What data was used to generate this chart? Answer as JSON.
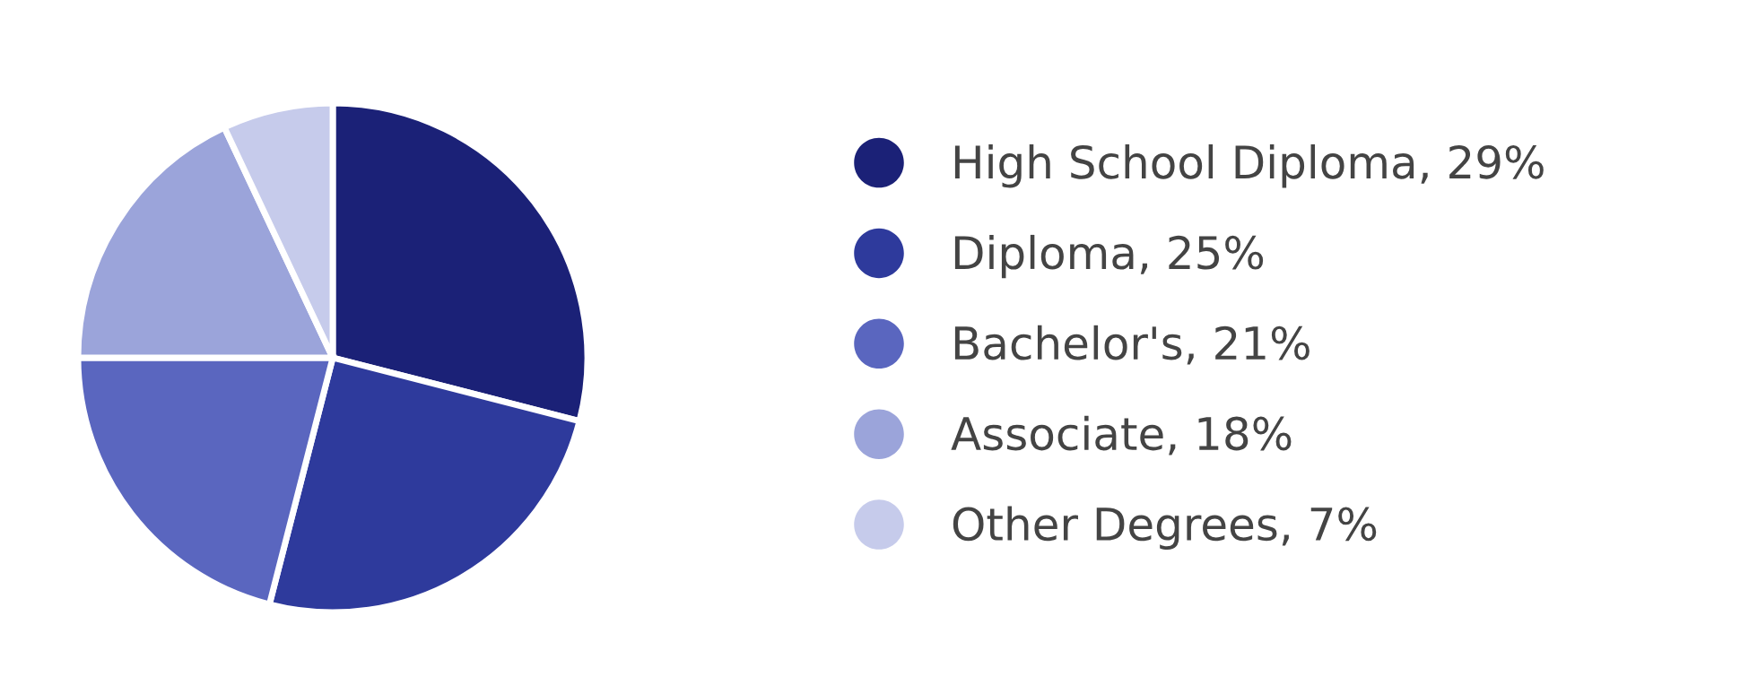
{
  "chart_data": {
    "type": "pie",
    "categories": [
      "High School Diploma",
      "Diploma",
      "Bachelor's",
      "Associate",
      "Other Degrees"
    ],
    "values": [
      29,
      25,
      21,
      18,
      7
    ],
    "value_labels": [
      "29%",
      "25%",
      "21%",
      "18%",
      "7%"
    ],
    "colors": [
      "#1b2177",
      "#2e3a9c",
      "#5a66bf",
      "#9ba4da",
      "#c6cbeb"
    ],
    "legend": "right"
  }
}
